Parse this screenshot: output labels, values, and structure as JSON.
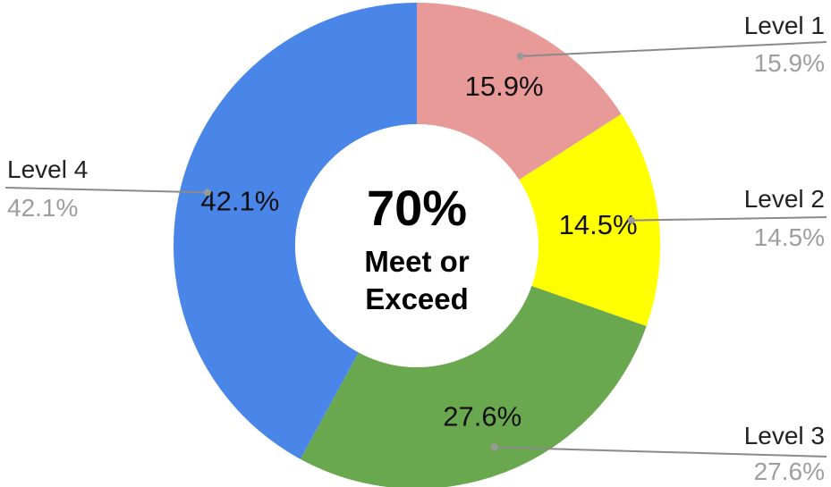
{
  "chart_data": {
    "type": "pie",
    "variant": "donut",
    "categories": [
      "Level 1",
      "Level 2",
      "Level 3",
      "Level 4"
    ],
    "values": [
      15.9,
      14.5,
      27.6,
      42.1
    ],
    "value_labels": [
      "15.9%",
      "14.5%",
      "27.6%",
      "42.1%"
    ],
    "colors": [
      "#e89a98",
      "#ffff00",
      "#6aa84f",
      "#4a86e8"
    ],
    "legend": "leader-labels",
    "center_text": {
      "value": "70%",
      "line1": "Meet or",
      "line2": "Exceed"
    }
  }
}
